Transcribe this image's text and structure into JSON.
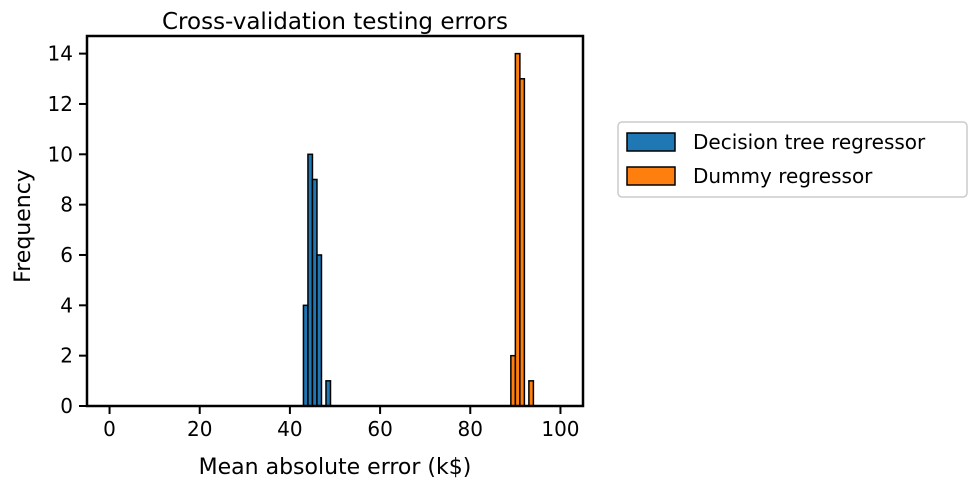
{
  "chart_data": {
    "type": "bar",
    "title": "Cross-validation testing errors",
    "xlabel": "Mean absolute error (k$)",
    "ylabel": "Frequency",
    "xlim": [
      -5,
      105
    ],
    "ylim": [
      0,
      14.7
    ],
    "xticks": [
      0,
      20,
      40,
      60,
      80,
      100
    ],
    "yticks": [
      0,
      2,
      4,
      6,
      8,
      10,
      12,
      14
    ],
    "bin_width": 1,
    "grid": false,
    "legend_position": "outside-right",
    "series": [
      {
        "name": "Decision tree regressor",
        "color": "#1f77b4",
        "bins": [
          {
            "x0": 43,
            "x1": 44,
            "count": 4
          },
          {
            "x0": 44,
            "x1": 45,
            "count": 10
          },
          {
            "x0": 45,
            "x1": 46,
            "count": 9
          },
          {
            "x0": 46,
            "x1": 47,
            "count": 6
          },
          {
            "x0": 47,
            "x1": 48,
            "count": 0
          },
          {
            "x0": 48,
            "x1": 49,
            "count": 1
          }
        ]
      },
      {
        "name": "Dummy regressor",
        "color": "#ff7f0e",
        "bins": [
          {
            "x0": 89,
            "x1": 90,
            "count": 2
          },
          {
            "x0": 90,
            "x1": 91,
            "count": 14
          },
          {
            "x0": 91,
            "x1": 92,
            "count": 13
          },
          {
            "x0": 92,
            "x1": 93,
            "count": 0
          },
          {
            "x0": 93,
            "x1": 94,
            "count": 1
          }
        ]
      }
    ],
    "zero_line": {
      "from": 0,
      "to": 100
    }
  }
}
